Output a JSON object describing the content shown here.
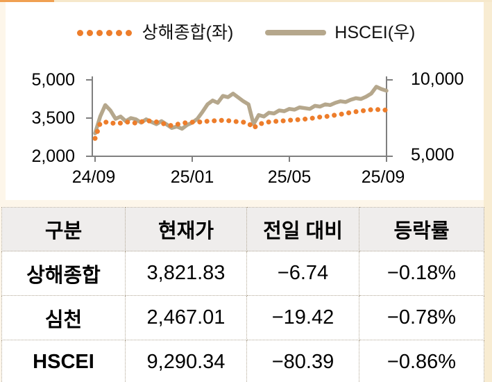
{
  "legend": {
    "items": [
      {
        "label": "상해종합(좌)",
        "marker": "dotted"
      },
      {
        "label": "HSCEI(우)",
        "marker": "solid"
      }
    ]
  },
  "chart_data": {
    "type": "line",
    "x_ticks": [
      "24/09",
      "25/01",
      "25/05",
      "25/09"
    ],
    "x_range": [
      "2024-09",
      "2025-09"
    ],
    "grid": false,
    "legend_position": "top",
    "left_axis": {
      "ticks": [
        "5,000",
        "3,500",
        "2,000"
      ],
      "range": [
        2000,
        5000
      ],
      "series": "상해종합"
    },
    "right_axis": {
      "ticks": [
        "10,000",
        "5,000"
      ],
      "range": [
        5000,
        10000
      ],
      "series": "HSCEI"
    },
    "series": [
      {
        "id": "hscei",
        "name": "HSCEI(우)",
        "axis": "right",
        "style": "solid",
        "color": "#b5a78c",
        "values": [
          6500,
          7600,
          8350,
          8000,
          7450,
          7600,
          7300,
          7500,
          7420,
          7200,
          7420,
          7250,
          7100,
          7300,
          7080,
          6850,
          6950,
          6800,
          7050,
          7200,
          7450,
          7900,
          8400,
          8650,
          8500,
          8950,
          8870,
          9100,
          8850,
          8600,
          8400,
          7100,
          7700,
          7600,
          7850,
          7800,
          8000,
          7950,
          8100,
          8050,
          8200,
          8150,
          8100,
          8300,
          8250,
          8400,
          8350,
          8500,
          8600,
          8550,
          8700,
          8800,
          8750,
          8900,
          9100,
          9550,
          9400,
          9290
        ]
      },
      {
        "id": "shanghai",
        "name": "상해종합(좌)",
        "axis": "left",
        "style": "dotted",
        "color": "#ed7d2b",
        "values": [
          2700,
          3300,
          3350,
          3280,
          3320,
          3300,
          3350,
          3330,
          3300,
          3350,
          3400,
          3380,
          3350,
          3300,
          3250,
          3200,
          3250,
          3300,
          3320,
          3340,
          3360,
          3330,
          3380,
          3400,
          3380,
          3420,
          3400,
          3380,
          3350,
          3340,
          3300,
          3100,
          3280,
          3290,
          3350,
          3380,
          3360,
          3400,
          3420,
          3410,
          3450,
          3460,
          3480,
          3510,
          3540,
          3560,
          3580,
          3620,
          3650,
          3680,
          3720,
          3750,
          3780,
          3800,
          3830,
          3850,
          3800,
          3822
        ]
      }
    ]
  },
  "table": {
    "headers": [
      "구분",
      "현재가",
      "전일 대비",
      "등락률"
    ],
    "rows": [
      {
        "name": "상해종합",
        "price": "3,821.83",
        "change": "−6.74",
        "rate": "−0.18%"
      },
      {
        "name": "심천",
        "price": "2,467.01",
        "change": "−19.42",
        "rate": "−0.78%"
      },
      {
        "name": "HSCEI",
        "price": "9,290.34",
        "change": "−80.39",
        "rate": "−0.86%"
      }
    ]
  },
  "colors": {
    "orange_series": "#ed7d2b",
    "tan_series": "#b5a78c",
    "axis_gray": "#7f7f7f",
    "page_cream": "#fdf6ea",
    "edge_band": "#f8ecd2",
    "top_line": "#f6e8cb",
    "top_accent": "#f0a052",
    "header_bg": "#efedec",
    "table_border": "#b2a795"
  }
}
